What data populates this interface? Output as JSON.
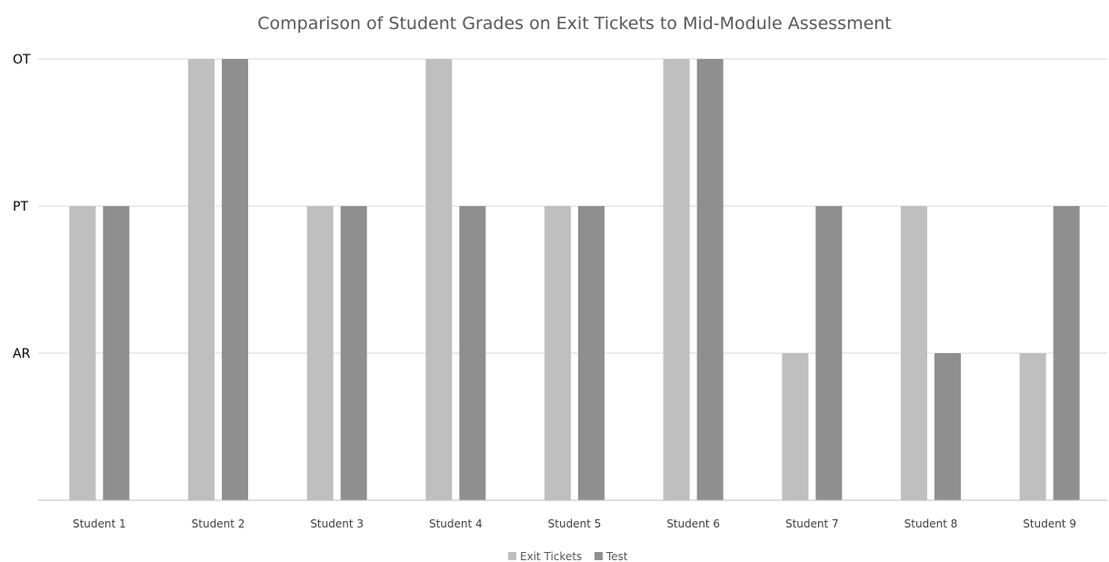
{
  "chart_data": {
    "type": "bar",
    "title": "Comparison of Student Grades on Exit Tickets to Mid-Module Assessment",
    "categories": [
      "Student 1",
      "Student 2",
      "Student 3",
      "Student 4",
      "Student 5",
      "Student 6",
      "Student 7",
      "Student 8",
      "Student 9"
    ],
    "y_levels": [
      "AR",
      "PT",
      "OT"
    ],
    "ylim": [
      0,
      3
    ],
    "grid": true,
    "legend_position": "bottom",
    "series": [
      {
        "name": "Exit Tickets",
        "color": "#bfbfbf",
        "values": [
          2,
          3,
          2,
          3,
          2,
          3,
          1,
          2,
          1
        ]
      },
      {
        "name": "Test",
        "color": "#8f8f8f",
        "values": [
          2,
          3,
          2,
          2,
          2,
          3,
          2,
          1,
          2
        ]
      }
    ]
  }
}
